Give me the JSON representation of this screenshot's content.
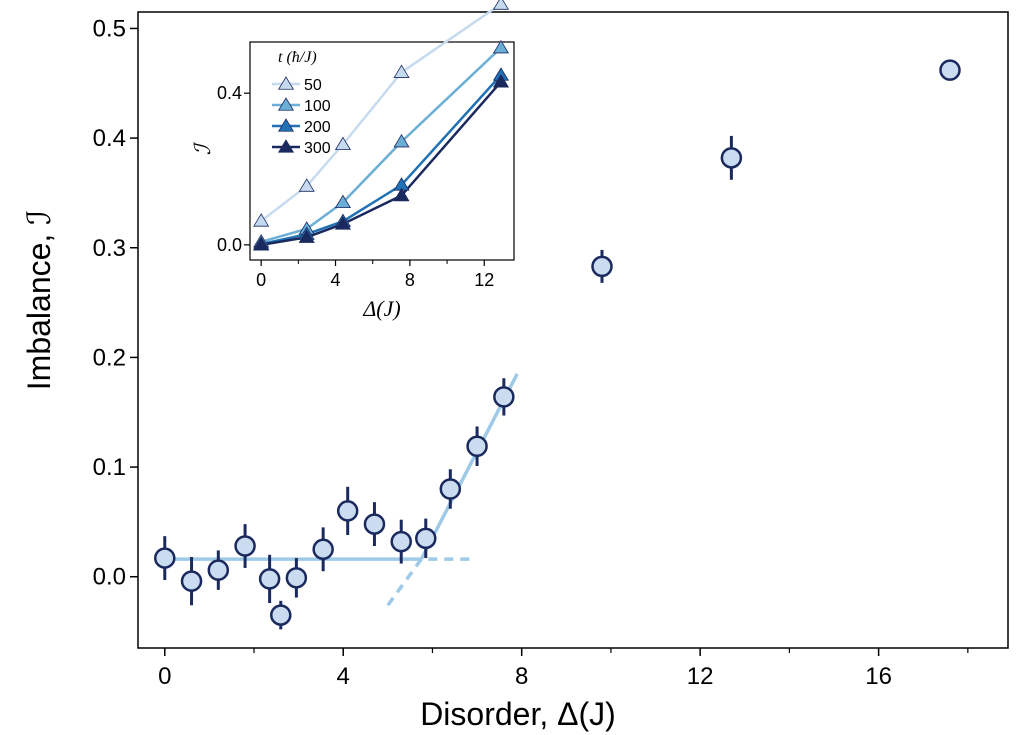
{
  "colors": {
    "marker_fill": "#c9dcf0",
    "marker_edge": "#1b2a5e",
    "fit_line": "#9ecae8",
    "series": [
      "#c6dbef",
      "#6baed6",
      "#2171b5",
      "#1b2a5e"
    ]
  },
  "chart_data": [
    {
      "type": "scatter",
      "xlabel": "Disorder, Δ(J)",
      "ylabel": "Imbalance, ℐ",
      "xlim": [
        -0.6,
        18.9
      ],
      "ylim": [
        -0.065,
        0.515
      ],
      "xticks": [
        "0",
        "4",
        "8",
        "12",
        "16"
      ],
      "yticks": [
        "0.0",
        "0.1",
        "0.2",
        "0.3",
        "0.4",
        "0.5"
      ],
      "grid": false,
      "error_bars": true,
      "points": [
        {
          "x": 0,
          "y": 0.017,
          "err": 0.02
        },
        {
          "x": 0.6,
          "y": -0.004,
          "err": 0.022
        },
        {
          "x": 1.2,
          "y": 0.006,
          "err": 0.018
        },
        {
          "x": 1.8,
          "y": 0.028,
          "err": 0.02
        },
        {
          "x": 2.35,
          "y": -0.002,
          "err": 0.022
        },
        {
          "x": 2.6,
          "y": -0.035,
          "err": 0.013
        },
        {
          "x": 2.95,
          "y": -0.001,
          "err": 0.018
        },
        {
          "x": 3.55,
          "y": 0.025,
          "err": 0.02
        },
        {
          "x": 4.1,
          "y": 0.06,
          "err": 0.022
        },
        {
          "x": 4.7,
          "y": 0.048,
          "err": 0.02
        },
        {
          "x": 5.3,
          "y": 0.032,
          "err": 0.02
        },
        {
          "x": 5.85,
          "y": 0.035,
          "err": 0.018
        },
        {
          "x": 6.4,
          "y": 0.08,
          "err": 0.018
        },
        {
          "x": 7.0,
          "y": 0.119,
          "err": 0.018
        },
        {
          "x": 7.6,
          "y": 0.164,
          "err": 0.017
        },
        {
          "x": 9.8,
          "y": 0.283,
          "err": 0.015
        },
        {
          "x": 12.7,
          "y": 0.382,
          "err": 0.02
        },
        {
          "x": 17.6,
          "y": 0.462,
          "err": 0.006
        }
      ],
      "fits": [
        {
          "style": "solid",
          "x": [
            0,
            5.55
          ],
          "y": [
            0.016,
            0.016
          ]
        },
        {
          "style": "dashed",
          "x": [
            5.55,
            6.95
          ],
          "y": [
            0.016,
            0.016
          ]
        },
        {
          "style": "solid",
          "x": [
            5.75,
            7.9
          ],
          "y": [
            0.016,
            0.185
          ]
        },
        {
          "style": "dashed",
          "x": [
            5.0,
            5.75
          ],
          "y": [
            -0.026,
            0.016
          ]
        }
      ]
    },
    {
      "type": "line",
      "xlabel": "Δ(J)",
      "ylabel": "ℐ",
      "xlim": [
        -0.6,
        13.6
      ],
      "ylim": [
        -0.04,
        0.535
      ],
      "xticks": [
        "0",
        "4",
        "8",
        "12"
      ],
      "yticks": [
        "0.0",
        "0.4"
      ],
      "legend_title": "t (ħ/J)",
      "legend_position": "top-left",
      "x": [
        0,
        2.45,
        4.4,
        7.55,
        12.9
      ],
      "series": [
        {
          "name": "50",
          "values": [
            0.063,
            0.155,
            0.265,
            0.455,
            0.635
          ]
        },
        {
          "name": "100",
          "values": [
            0.008,
            0.042,
            0.112,
            0.272,
            0.52
          ]
        },
        {
          "name": "200",
          "values": [
            0.002,
            0.028,
            0.062,
            0.158,
            0.448
          ]
        },
        {
          "name": "300",
          "values": [
            0.0,
            0.02,
            0.055,
            0.13,
            0.43
          ]
        }
      ]
    }
  ]
}
